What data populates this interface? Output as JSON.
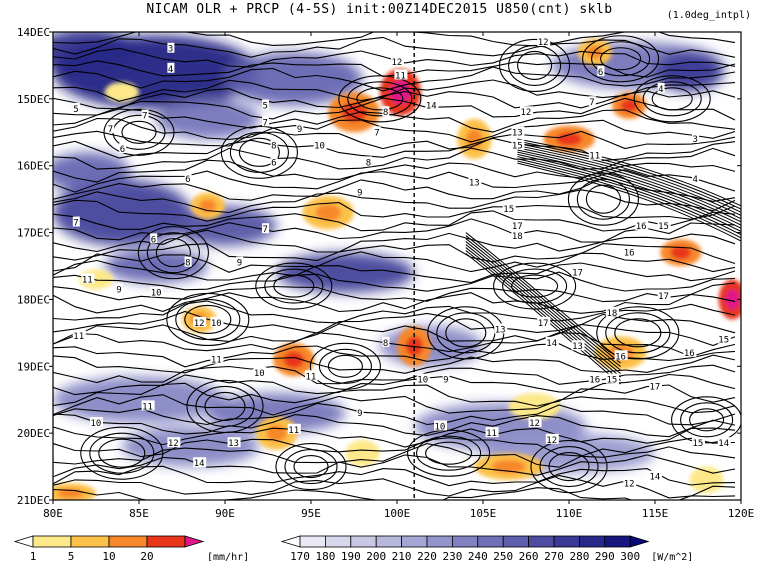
{
  "chart_data": {
    "type": "heatmap",
    "title": "NICAM  OLR + PRCP (4-5S) init:00Z14DEC2015 U850(cnt) sklb",
    "note": "(1.0deg_intpl)",
    "x_ticks": [
      "80E",
      "85E",
      "90E",
      "95E",
      "100E",
      "105E",
      "110E",
      "115E",
      "120E"
    ],
    "x_values": [
      80,
      85,
      90,
      95,
      100,
      105,
      110,
      115,
      120
    ],
    "y_ticks": [
      "14DEC",
      "15DEC",
      "16DEC",
      "17DEC",
      "18DEC",
      "19DEC",
      "20DEC",
      "21DEC"
    ],
    "y_values": [
      14,
      15,
      16,
      17,
      18,
      19,
      20,
      21
    ],
    "xlim": [
      80,
      120
    ],
    "ylim": [
      14,
      21
    ],
    "y_inverted": true,
    "reference_line_lon": 101,
    "precip_colorbar": {
      "unit": "[mm/hr]",
      "levels": [
        "1",
        "5",
        "10",
        "20"
      ],
      "colors": [
        "#ffffff",
        "#fde98a",
        "#fcc14a",
        "#f7882a",
        "#e8351c",
        "#e0188a"
      ]
    },
    "olr_colorbar": {
      "unit": "[W/m^2]",
      "levels": [
        "170",
        "180",
        "190",
        "200",
        "210",
        "220",
        "230",
        "240",
        "250",
        "260",
        "270",
        "280",
        "290",
        "300"
      ],
      "colors": [
        "#ffffff",
        "#e8e8f2",
        "#d8d8ec",
        "#c8c8e4",
        "#b8b8dc",
        "#a6a6d4",
        "#9494cc",
        "#8282c2",
        "#7070b8",
        "#5e5eae",
        "#4c4ca2",
        "#3a3a96",
        "#28288a",
        "#16167e",
        "#08087a"
      ]
    },
    "olr_blobs": [
      {
        "lon": 86,
        "day": 14.6,
        "rx": 6,
        "ry": 0.55,
        "level": 0.95
      },
      {
        "lon": 82,
        "day": 14.3,
        "rx": 3,
        "ry": 0.35,
        "level": 0.85
      },
      {
        "lon": 94,
        "day": 14.7,
        "rx": 4,
        "ry": 0.4,
        "level": 0.6
      },
      {
        "lon": 84,
        "day": 16.7,
        "rx": 4,
        "ry": 0.5,
        "level": 0.8
      },
      {
        "lon": 90,
        "day": 16.9,
        "rx": 3,
        "ry": 0.3,
        "level": 0.7
      },
      {
        "lon": 97,
        "day": 17.6,
        "rx": 4,
        "ry": 0.3,
        "level": 0.8
      },
      {
        "lon": 86,
        "day": 17.5,
        "rx": 3,
        "ry": 0.25,
        "level": 0.6
      },
      {
        "lon": 82,
        "day": 16.1,
        "rx": 2.5,
        "ry": 0.3,
        "level": 0.6
      },
      {
        "lon": 89,
        "day": 15.3,
        "rx": 3,
        "ry": 0.3,
        "level": 0.5
      },
      {
        "lon": 85,
        "day": 19.5,
        "rx": 5,
        "ry": 0.35,
        "level": 0.4
      },
      {
        "lon": 93,
        "day": 19.7,
        "rx": 4,
        "ry": 0.3,
        "level": 0.45
      },
      {
        "lon": 106,
        "day": 19.9,
        "rx": 5,
        "ry": 0.35,
        "level": 0.35
      },
      {
        "lon": 114,
        "day": 14.5,
        "rx": 5,
        "ry": 0.35,
        "level": 0.5
      },
      {
        "lon": 117,
        "day": 14.6,
        "rx": 2,
        "ry": 0.3,
        "level": 0.8
      },
      {
        "lon": 110,
        "day": 20.3,
        "rx": 5,
        "ry": 0.3,
        "level": 0.3
      },
      {
        "lon": 102,
        "day": 18.7,
        "rx": 3,
        "ry": 0.3,
        "level": 0.35
      },
      {
        "lon": 88,
        "day": 20.2,
        "rx": 4,
        "ry": 0.3,
        "level": 0.35
      }
    ],
    "precip_blobs": [
      {
        "lon": 100.2,
        "day": 14.9,
        "rx": 1.2,
        "ry": 0.35,
        "level": 4
      },
      {
        "lon": 97.5,
        "day": 15.2,
        "rx": 1.5,
        "ry": 0.3,
        "level": 3
      },
      {
        "lon": 104.5,
        "day": 15.6,
        "rx": 1,
        "ry": 0.3,
        "level": 2
      },
      {
        "lon": 110,
        "day": 15.6,
        "rx": 1.5,
        "ry": 0.2,
        "level": 3
      },
      {
        "lon": 113.5,
        "day": 15.1,
        "rx": 1,
        "ry": 0.2,
        "level": 3
      },
      {
        "lon": 111.5,
        "day": 14.3,
        "rx": 1,
        "ry": 0.2,
        "level": 2
      },
      {
        "lon": 116.5,
        "day": 17.3,
        "rx": 1.2,
        "ry": 0.2,
        "level": 3
      },
      {
        "lon": 119.5,
        "day": 18.0,
        "rx": 0.8,
        "ry": 0.3,
        "level": 4
      },
      {
        "lon": 113,
        "day": 18.8,
        "rx": 1.5,
        "ry": 0.25,
        "level": 2
      },
      {
        "lon": 101,
        "day": 18.7,
        "rx": 1,
        "ry": 0.3,
        "level": 3
      },
      {
        "lon": 94,
        "day": 18.9,
        "rx": 1.2,
        "ry": 0.25,
        "level": 3
      },
      {
        "lon": 93,
        "day": 20.0,
        "rx": 1.2,
        "ry": 0.25,
        "level": 2
      },
      {
        "lon": 88.5,
        "day": 18.3,
        "rx": 1,
        "ry": 0.2,
        "level": 2
      },
      {
        "lon": 96,
        "day": 16.7,
        "rx": 1.5,
        "ry": 0.25,
        "level": 2
      },
      {
        "lon": 89,
        "day": 16.6,
        "rx": 1,
        "ry": 0.2,
        "level": 2
      },
      {
        "lon": 81,
        "day": 20.9,
        "rx": 1.5,
        "ry": 0.15,
        "level": 2
      },
      {
        "lon": 106.5,
        "day": 20.5,
        "rx": 2,
        "ry": 0.2,
        "level": 2
      },
      {
        "lon": 118,
        "day": 20.7,
        "rx": 1,
        "ry": 0.2,
        "level": 1
      },
      {
        "lon": 84,
        "day": 14.9,
        "rx": 1,
        "ry": 0.15,
        "level": 1
      },
      {
        "lon": 108,
        "day": 19.6,
        "rx": 1.5,
        "ry": 0.2,
        "level": 1
      },
      {
        "lon": 82.5,
        "day": 17.7,
        "rx": 1,
        "ry": 0.15,
        "level": 1
      },
      {
        "lon": 98,
        "day": 20.3,
        "rx": 1,
        "ry": 0.2,
        "level": 1
      }
    ],
    "contour_labels": [
      {
        "text": "3",
        "lon": 87,
        "day": 14.25
      },
      {
        "text": "4",
        "lon": 87,
        "day": 14.55
      },
      {
        "text": "5",
        "lon": 81.5,
        "day": 15.15
      },
      {
        "text": "7",
        "lon": 85.5,
        "day": 15.25
      },
      {
        "text": "7",
        "lon": 83.5,
        "day": 15.45
      },
      {
        "text": "6",
        "lon": 84.2,
        "day": 15.75
      },
      {
        "text": "5",
        "lon": 92.5,
        "day": 15.1
      },
      {
        "text": "7",
        "lon": 92.5,
        "day": 15.35
      },
      {
        "text": "9",
        "lon": 94.5,
        "day": 15.45
      },
      {
        "text": "8",
        "lon": 93,
        "day": 15.7
      },
      {
        "text": "6",
        "lon": 93,
        "day": 15.95
      },
      {
        "text": "10",
        "lon": 95.5,
        "day": 15.7
      },
      {
        "text": "8",
        "lon": 99.5,
        "day": 15.2
      },
      {
        "text": "7",
        "lon": 99,
        "day": 15.5
      },
      {
        "text": "8",
        "lon": 98.5,
        "day": 15.95
      },
      {
        "text": "12",
        "lon": 100,
        "day": 14.45
      },
      {
        "text": "11",
        "lon": 100.2,
        "day": 14.65
      },
      {
        "text": "14",
        "lon": 102,
        "day": 15.1
      },
      {
        "text": "12",
        "lon": 107.5,
        "day": 15.2
      },
      {
        "text": "13",
        "lon": 107,
        "day": 15.5
      },
      {
        "text": "15",
        "lon": 107,
        "day": 15.7
      },
      {
        "text": "12",
        "lon": 108.5,
        "day": 14.15
      },
      {
        "text": "6",
        "lon": 112,
        "day": 14.6
      },
      {
        "text": "7",
        "lon": 111.5,
        "day": 15.05
      },
      {
        "text": "4",
        "lon": 115.5,
        "day": 14.85
      },
      {
        "text": "3",
        "lon": 117.5,
        "day": 15.6
      },
      {
        "text": "11",
        "lon": 111.5,
        "day": 15.85
      },
      {
        "text": "4",
        "lon": 117.5,
        "day": 16.2
      },
      {
        "text": "13",
        "lon": 104.5,
        "day": 16.25
      },
      {
        "text": "6",
        "lon": 88,
        "day": 16.2
      },
      {
        "text": "9",
        "lon": 98,
        "day": 16.4
      },
      {
        "text": "7",
        "lon": 81.5,
        "day": 16.85
      },
      {
        "text": "6",
        "lon": 86,
        "day": 17.1
      },
      {
        "text": "7",
        "lon": 92.5,
        "day": 16.95
      },
      {
        "text": "8",
        "lon": 88,
        "day": 17.45
      },
      {
        "text": "9",
        "lon": 91,
        "day": 17.45
      },
      {
        "text": "15",
        "lon": 106.5,
        "day": 16.65
      },
      {
        "text": "17",
        "lon": 107,
        "day": 16.9
      },
      {
        "text": "18",
        "lon": 107,
        "day": 17.05
      },
      {
        "text": "16",
        "lon": 114.2,
        "day": 16.9
      },
      {
        "text": "15",
        "lon": 115.5,
        "day": 16.9
      },
      {
        "text": "16",
        "lon": 113.5,
        "day": 17.3
      },
      {
        "text": "11",
        "lon": 82,
        "day": 17.7
      },
      {
        "text": "9",
        "lon": 84,
        "day": 17.85
      },
      {
        "text": "10",
        "lon": 86,
        "day": 17.9
      },
      {
        "text": "17",
        "lon": 110.5,
        "day": 17.6
      },
      {
        "text": "17",
        "lon": 115.5,
        "day": 17.95
      },
      {
        "text": "12",
        "lon": 88.5,
        "day": 18.35
      },
      {
        "text": "10",
        "lon": 89.5,
        "day": 18.35
      },
      {
        "text": "18",
        "lon": 112.5,
        "day": 18.2
      },
      {
        "text": "17",
        "lon": 108.5,
        "day": 18.35
      },
      {
        "text": "13",
        "lon": 106,
        "day": 18.45
      },
      {
        "text": "14",
        "lon": 109,
        "day": 18.65
      },
      {
        "text": "13",
        "lon": 110.5,
        "day": 18.7
      },
      {
        "text": "16",
        "lon": 113,
        "day": 18.85
      },
      {
        "text": "16",
        "lon": 117,
        "day": 18.8
      },
      {
        "text": "15",
        "lon": 119,
        "day": 18.6
      },
      {
        "text": "11",
        "lon": 81.5,
        "day": 18.55
      },
      {
        "text": "8",
        "lon": 99.5,
        "day": 18.65
      },
      {
        "text": "11",
        "lon": 89.5,
        "day": 18.9
      },
      {
        "text": "10",
        "lon": 92,
        "day": 19.1
      },
      {
        "text": "11",
        "lon": 95,
        "day": 19.15
      },
      {
        "text": "16",
        "lon": 111.5,
        "day": 19.2
      },
      {
        "text": "15",
        "lon": 112.5,
        "day": 19.2
      },
      {
        "text": "17",
        "lon": 115,
        "day": 19.3
      },
      {
        "text": "10",
        "lon": 101.5,
        "day": 19.2
      },
      {
        "text": "9",
        "lon": 103,
        "day": 19.2
      },
      {
        "text": "11",
        "lon": 85.5,
        "day": 19.6
      },
      {
        "text": "9",
        "lon": 98,
        "day": 19.7
      },
      {
        "text": "10",
        "lon": 82.5,
        "day": 19.85
      },
      {
        "text": "12",
        "lon": 108,
        "day": 19.85
      },
      {
        "text": "10",
        "lon": 102.5,
        "day": 19.9
      },
      {
        "text": "11",
        "lon": 105.5,
        "day": 20.0
      },
      {
        "text": "11",
        "lon": 94,
        "day": 19.95
      },
      {
        "text": "12",
        "lon": 87,
        "day": 20.15
      },
      {
        "text": "13",
        "lon": 90.5,
        "day": 20.15
      },
      {
        "text": "12",
        "lon": 109,
        "day": 20.1
      },
      {
        "text": "15",
        "lon": 117.5,
        "day": 20.15
      },
      {
        "text": "14",
        "lon": 119,
        "day": 20.15
      },
      {
        "text": "14",
        "lon": 88.5,
        "day": 20.45
      },
      {
        "text": "14",
        "lon": 115,
        "day": 20.65
      },
      {
        "text": "12",
        "lon": 113.5,
        "day": 20.75
      }
    ]
  }
}
